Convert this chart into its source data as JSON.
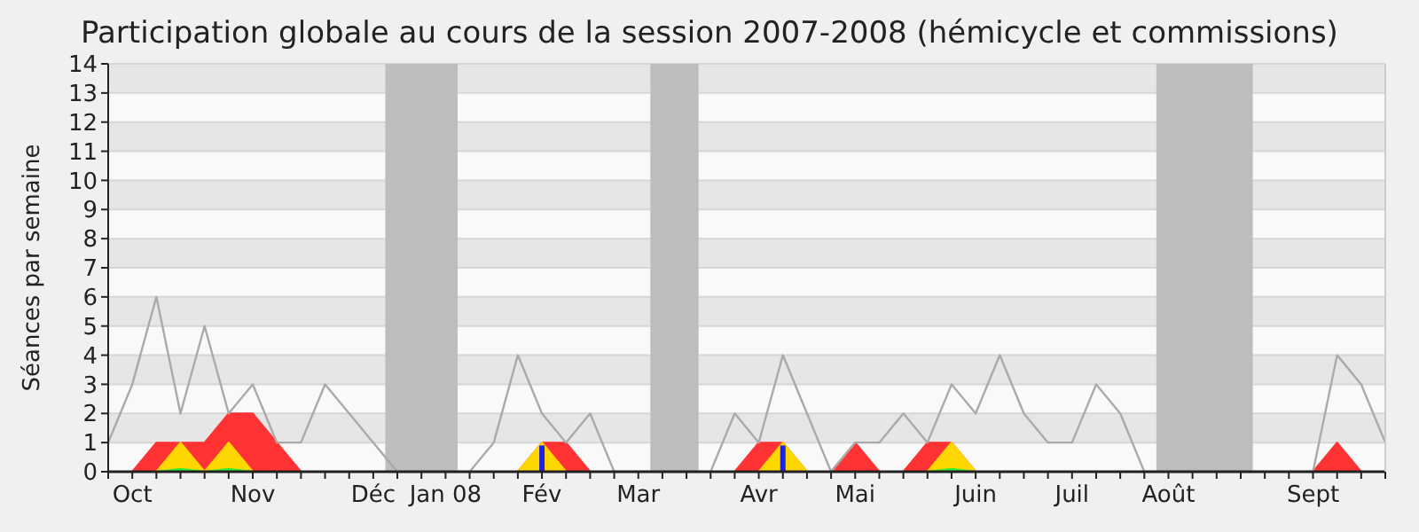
{
  "chart_data": {
    "type": "area",
    "title": "Participation globale au cours de la session 2007-2008 (hémicycle et commissions)",
    "ylabel": "Séances par semaine",
    "categories": [
      null,
      "Oct",
      null,
      null,
      null,
      null,
      "Nov",
      null,
      null,
      null,
      null,
      "Déc",
      null,
      null,
      "Jan 08",
      null,
      null,
      null,
      "Fév",
      null,
      null,
      null,
      "Mar",
      null,
      null,
      null,
      null,
      "Avr",
      null,
      null,
      null,
      "Mai",
      null,
      null,
      null,
      null,
      "Juin",
      null,
      null,
      null,
      "Juil",
      null,
      null,
      null,
      "Août",
      null,
      null,
      null,
      null,
      null,
      "Sept",
      null,
      null,
      null
    ],
    "series": [
      {
        "color": "#ff3333",
        "values": [
          0,
          0,
          1,
          1,
          1,
          2,
          2,
          1,
          0,
          0,
          0,
          0,
          0,
          0,
          0,
          0,
          0,
          0,
          1,
          1,
          0,
          0,
          0,
          0,
          0,
          0,
          0,
          1,
          1,
          0,
          0,
          1,
          0,
          0,
          1,
          1,
          0,
          0,
          0,
          0,
          0,
          0,
          0,
          0,
          0,
          0,
          0,
          0,
          0,
          0,
          0,
          1,
          0,
          0
        ]
      },
      {
        "color": "#ffd700",
        "values": [
          0,
          0,
          0,
          1,
          0,
          1,
          0,
          0,
          0,
          0,
          0,
          0,
          0,
          0,
          0,
          0,
          0,
          0,
          1,
          0,
          0,
          0,
          0,
          0,
          0,
          0,
          0,
          0,
          1,
          0,
          0,
          0,
          0,
          0,
          0,
          1,
          0,
          0,
          0,
          0,
          0,
          0,
          0,
          0,
          0,
          0,
          0,
          0,
          0,
          0,
          0,
          0,
          0,
          0
        ]
      },
      {
        "color": "#33ee33",
        "values": [
          0,
          0,
          0,
          0.1,
          0,
          0.1,
          0,
          0,
          0,
          0,
          0,
          0,
          0,
          0,
          0,
          0,
          0,
          0,
          0,
          0,
          0,
          0,
          0,
          0,
          0,
          0,
          0,
          0,
          0,
          0,
          0,
          0,
          0,
          0,
          0,
          0.1,
          0,
          0,
          0,
          0,
          0,
          0,
          0,
          0,
          0,
          0,
          0,
          0,
          0,
          0,
          0,
          0,
          0,
          0
        ]
      },
      {
        "type": "bar",
        "color": "#2222dd",
        "values": [
          null,
          null,
          null,
          null,
          null,
          null,
          null,
          null,
          null,
          null,
          null,
          null,
          null,
          null,
          null,
          null,
          null,
          null,
          0.9,
          null,
          null,
          null,
          null,
          null,
          null,
          null,
          null,
          null,
          0.9,
          null,
          null,
          null,
          null,
          null,
          null,
          null,
          null,
          null,
          null,
          null,
          null,
          null,
          null,
          null,
          null,
          null,
          null,
          null,
          null,
          null,
          null,
          null,
          null,
          null
        ]
      },
      {
        "type": "line",
        "color": "#aaaaaa",
        "values": [
          1,
          3,
          6,
          2,
          5,
          2,
          3,
          1,
          1,
          3,
          2,
          1,
          0,
          0,
          0,
          0,
          1,
          4,
          2,
          1,
          2,
          0,
          0,
          0,
          0,
          0,
          2,
          1,
          4,
          2,
          0,
          1,
          1,
          2,
          1,
          3,
          2,
          4,
          2,
          1,
          1,
          3,
          2,
          0,
          0,
          0,
          0,
          0,
          0,
          0,
          0,
          4,
          3,
          1
        ]
      }
    ],
    "ylim": [
      0,
      14
    ],
    "yticks": [
      0,
      1,
      2,
      3,
      4,
      5,
      6,
      7,
      8,
      9,
      10,
      11,
      12,
      13,
      14
    ],
    "grid": "y"
  }
}
